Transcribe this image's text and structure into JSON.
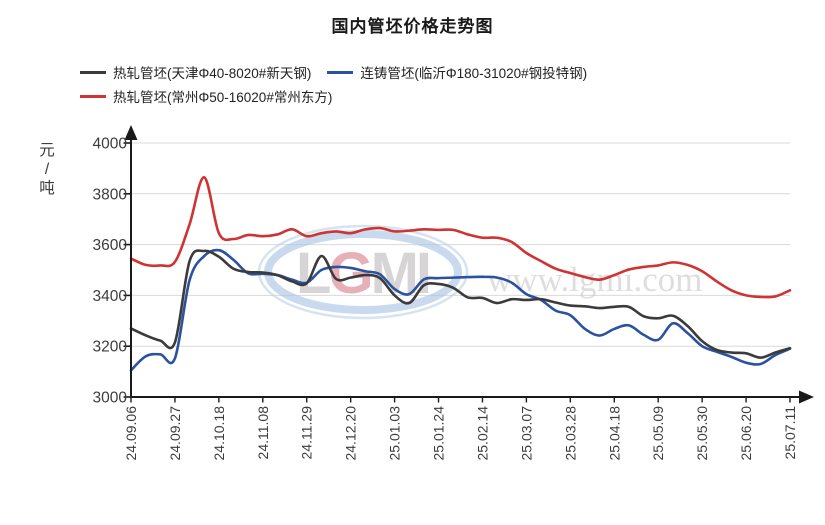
{
  "title": "国内管坯价格走势图",
  "y_axis": {
    "unit": "元/吨",
    "tick_labels": [
      "4000",
      "3800",
      "3600",
      "3400",
      "3200",
      "3000"
    ]
  },
  "watermark": {
    "logo_prefix": "L",
    "logo_accent": "G",
    "logo_suffix": "MI",
    "url": "www.lgmi.com"
  },
  "colors": {
    "series_tianjin": "#3b3b3b",
    "series_linyi": "#2a52a0",
    "series_changzhou": "#cf3333",
    "grid": "#d9d9d9",
    "axis": "#1a1a1a",
    "tick_text": "#3c3c3c"
  },
  "chart_data": {
    "type": "line",
    "title": "国内管坯价格走势图",
    "ylabel": "元/吨",
    "ylim": [
      3000,
      4000
    ],
    "y_ticks": [
      3000,
      3200,
      3400,
      3600,
      3800,
      4000
    ],
    "grid": true,
    "legend_position": "top",
    "x_tick_labels": [
      "24.09.06",
      "24.09.27",
      "24.10.18",
      "24.11.08",
      "24.11.29",
      "24.12.20",
      "25.01.03",
      "25.01.24",
      "25.02.14",
      "25.03.07",
      "25.03.28",
      "25.04.18",
      "25.05.09",
      "25.05.30",
      "25.06.20",
      "25.07.11"
    ],
    "points_per_tick": 3,
    "series": [
      {
        "name": "热轧管坯(天津Φ40-8020#新天钢)",
        "color": "#3b3b3b",
        "values": [
          3270,
          3243,
          3222,
          3215,
          3535,
          3575,
          3552,
          3505,
          3492,
          3490,
          3480,
          3455,
          3448,
          3555,
          3465,
          3470,
          3480,
          3468,
          3400,
          3370,
          3440,
          3445,
          3430,
          3392,
          3390,
          3370,
          3385,
          3382,
          3385,
          3372,
          3360,
          3357,
          3350,
          3355,
          3355,
          3318,
          3310,
          3320,
          3280,
          3220,
          3185,
          3175,
          3172,
          3155,
          3175,
          3192
        ]
      },
      {
        "name": "连铸管坯(临沂Φ180-31020#钢投特钢)",
        "color": "#2a52a0",
        "values": [
          3105,
          3160,
          3168,
          3152,
          3460,
          3555,
          3578,
          3540,
          3487,
          3485,
          3480,
          3462,
          3450,
          3500,
          3512,
          3508,
          3495,
          3483,
          3425,
          3405,
          3463,
          3468,
          3470,
          3472,
          3473,
          3470,
          3450,
          3405,
          3382,
          3340,
          3322,
          3268,
          3242,
          3268,
          3282,
          3245,
          3225,
          3290,
          3252,
          3200,
          3178,
          3158,
          3135,
          3130,
          3165,
          3190
        ]
      },
      {
        "name": "热轧管坯(常州Φ50-16020#常州东方)",
        "color": "#cf3333",
        "values": [
          3545,
          3520,
          3518,
          3532,
          3680,
          3865,
          3645,
          3622,
          3638,
          3633,
          3640,
          3660,
          3633,
          3645,
          3652,
          3645,
          3660,
          3665,
          3652,
          3655,
          3660,
          3658,
          3658,
          3640,
          3627,
          3627,
          3610,
          3567,
          3535,
          3505,
          3488,
          3472,
          3462,
          3480,
          3502,
          3512,
          3518,
          3530,
          3520,
          3495,
          3455,
          3420,
          3400,
          3394,
          3396,
          3420
        ]
      }
    ]
  }
}
